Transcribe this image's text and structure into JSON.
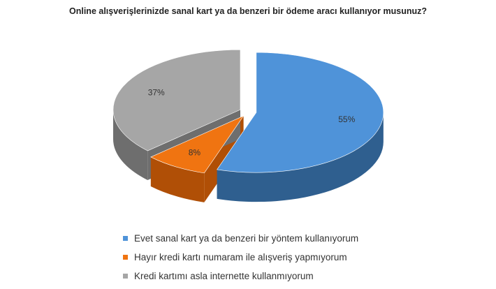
{
  "chart_data": {
    "type": "pie",
    "title": "Online alışverişlerinizde sanal kart ya da benzeri bir ödeme aracı kullanıyor musunuz?",
    "slices": [
      {
        "label": "Evet sanal kart ya da benzeri bir yöntem kullanıyorum",
        "value": 55,
        "value_label": "55%",
        "color": "#4F93D9",
        "side_color": "#2F5F8F"
      },
      {
        "label": "Hayır kredi kartı numaram ile alışveriş yapmıyorum",
        "value": 8,
        "value_label": "8%",
        "color": "#F07411",
        "side_color": "#B04F06"
      },
      {
        "label": "Kredi kartımı asla internette kullanmıyorum",
        "value": 37,
        "value_label": "37%",
        "color": "#A6A6A6",
        "side_color": "#6E6E6E"
      }
    ],
    "style": "3d-exploded",
    "legend_position": "bottom"
  }
}
